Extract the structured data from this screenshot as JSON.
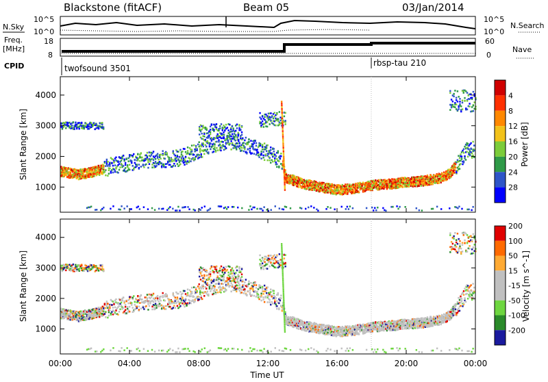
{
  "header": {
    "station": "Blackstone (fitACF)",
    "beam": "Beam 05",
    "date": "03/Jan/2014"
  },
  "noise_panel": {
    "left_label": "N.Sky",
    "right_label": "N.Search",
    "left_ticks": [
      "10^5",
      "10^0"
    ],
    "right_ticks": [
      "10^5",
      "10^0"
    ]
  },
  "freq_panel": {
    "left_label_line1": "Freq.",
    "left_label_line2": "[MHz]",
    "left_ticks": [
      "18",
      "8"
    ],
    "right_label": "Nave",
    "right_ticks": [
      "60",
      "0"
    ]
  },
  "cpid": {
    "label": "CPID",
    "modes": [
      {
        "name": "twofsound 3501",
        "start_hour": 0.0
      },
      {
        "name": "rbsp-tau 210",
        "start_hour": 18.0
      }
    ]
  },
  "chart_data": [
    {
      "type": "heatmap",
      "title": "",
      "xlabel": "",
      "ylabel": "Slant Range [km]",
      "xlim": [
        0,
        24
      ],
      "ylim": [
        180,
        4600
      ],
      "yticks": [
        1000,
        2000,
        3000,
        4000
      ],
      "colorbar": {
        "label": "Power [dB]",
        "range": [
          0,
          32
        ],
        "ticks": [
          "4",
          "8",
          "12",
          "16",
          "20",
          "24",
          "28"
        ]
      },
      "echo_bands": [
        {
          "x": [
            0,
            1,
            2,
            3,
            4,
            5,
            6,
            7,
            8,
            9,
            10,
            11,
            12,
            12.8,
            13,
            14,
            15,
            16,
            17,
            18,
            19,
            20,
            21,
            22,
            22.5,
            23,
            23.5
          ],
          "range_km": [
            1500,
            1400,
            1500,
            1700,
            1800,
            1900,
            1900,
            1950,
            2200,
            2400,
            2500,
            2300,
            2100,
            1800,
            1300,
            1100,
            1000,
            900,
            950,
            1050,
            1100,
            1150,
            1200,
            1300,
            1450,
            1800,
            2200
          ]
        }
      ]
    },
    {
      "type": "heatmap",
      "title": "",
      "xlabel": "Time UT",
      "ylabel": "Slant Range [km]",
      "xlim": [
        0,
        24
      ],
      "ylim": [
        180,
        4600
      ],
      "xticks": [
        "00:00",
        "04:00",
        "08:00",
        "12:00",
        "16:00",
        "20:00",
        "00:00"
      ],
      "yticks": [
        1000,
        2000,
        3000,
        4000
      ],
      "colorbar": {
        "label": "Velocity [m s^-1]",
        "range": [
          -250,
          250
        ],
        "ticks": [
          "200",
          "100",
          "50",
          "15",
          "-15",
          "-50",
          "-100",
          "-200"
        ]
      }
    }
  ],
  "colors": {
    "power": [
      "#0000ff",
      "#2e55c8",
      "#2f9a48",
      "#7ccc3a",
      "#f2c21a",
      "#ff8800",
      "#ff3000",
      "#d00000"
    ],
    "velocity": [
      "#1a1a9e",
      "#2a8a2a",
      "#6ed640",
      "#c0c0c0",
      "#c0c0c0",
      "#ffaa33",
      "#ff6a00",
      "#e00000"
    ]
  }
}
